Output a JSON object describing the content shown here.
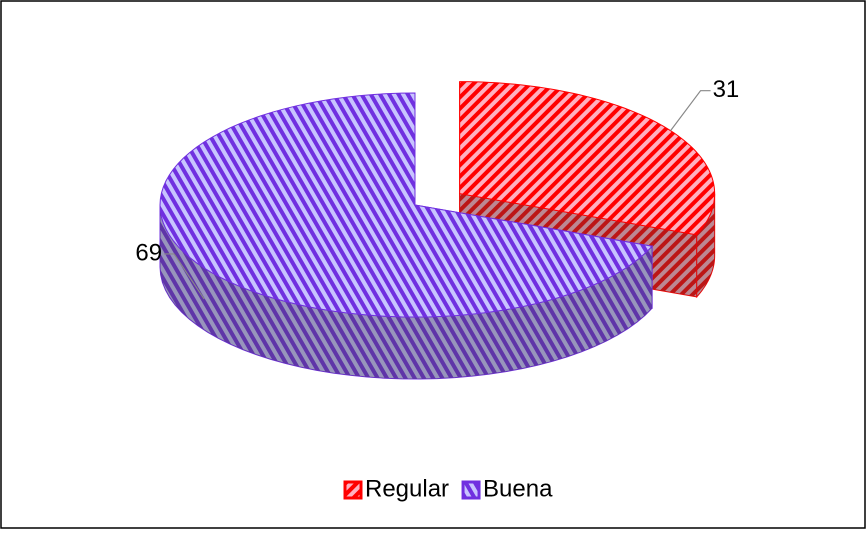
{
  "chart_data": {
    "type": "pie3d",
    "categories": [
      "Regular",
      "Buena"
    ],
    "values": [
      31,
      69
    ],
    "colors": [
      "#ff0000",
      "#7030e0"
    ],
    "legend": "bottom"
  }
}
